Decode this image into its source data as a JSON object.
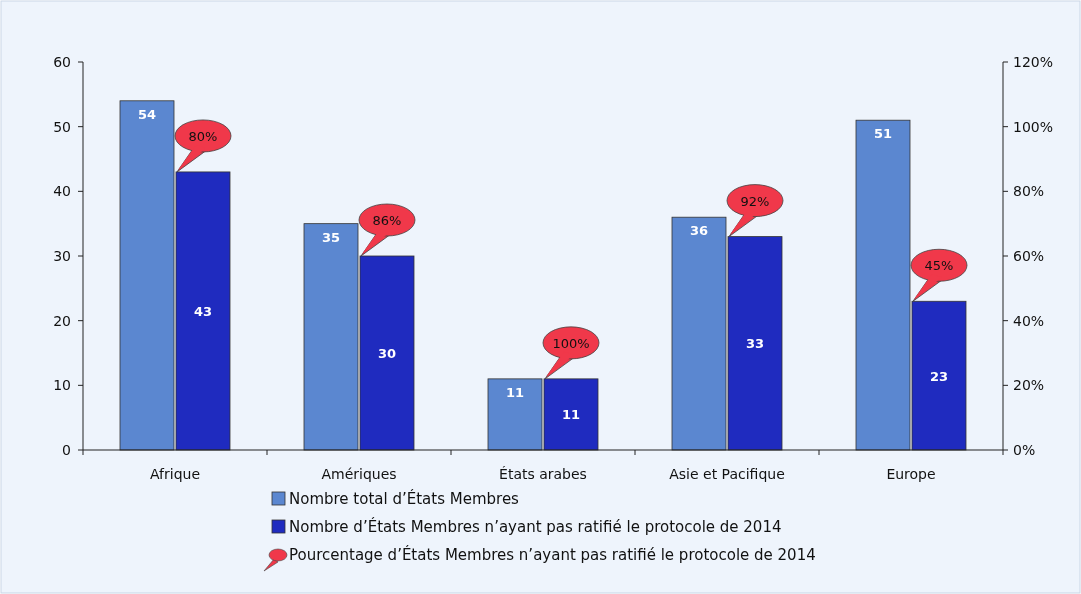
{
  "chart_data": {
    "type": "bar",
    "categories": [
      "Afrique",
      "Amériques",
      "États arabes",
      "Asie et Pacifique",
      "Europe"
    ],
    "series": [
      {
        "name": "Nombre total d’États Membres",
        "color": "#5b87d0",
        "values": [
          54,
          35,
          11,
          36,
          51
        ]
      },
      {
        "name": "Nombre d’États Membres n’ayant pas ratifié le protocole de 2014",
        "color": "#1f2bbf",
        "values": [
          43,
          30,
          11,
          33,
          23
        ]
      }
    ],
    "annotations": [
      {
        "text": "80%",
        "x": "Afrique",
        "y": 43
      },
      {
        "text": "86%",
        "x": "Amériques",
        "y": 30
      },
      {
        "text": "100%",
        "x": "États arabes",
        "y": 11
      },
      {
        "text": "92%",
        "x": "Asie et Pacifique",
        "y": 33
      },
      {
        "text": "45%",
        "x": "Europe",
        "y": 23
      },
      "Pourcentage d’États Membres n’ayant pas ratifié le protocole de 2014"
    ],
    "ylim": [
      0,
      60
    ],
    "yticks": [
      0,
      10,
      20,
      30,
      40,
      50,
      60
    ],
    "y2lim": [
      0,
      120
    ],
    "y2ticks": [
      {
        "value": 0,
        "label": "0%"
      },
      {
        "value": 20,
        "label": "20%"
      },
      {
        "value": 40,
        "label": "40%"
      },
      {
        "value": 60,
        "label": "60%"
      },
      {
        "value": 80,
        "label": "80%"
      },
      {
        "value": 100,
        "label": "100%"
      },
      {
        "value": 120,
        "label": "120%"
      }
    ],
    "data_labels": true,
    "legend": "bottom",
    "grid": false
  }
}
